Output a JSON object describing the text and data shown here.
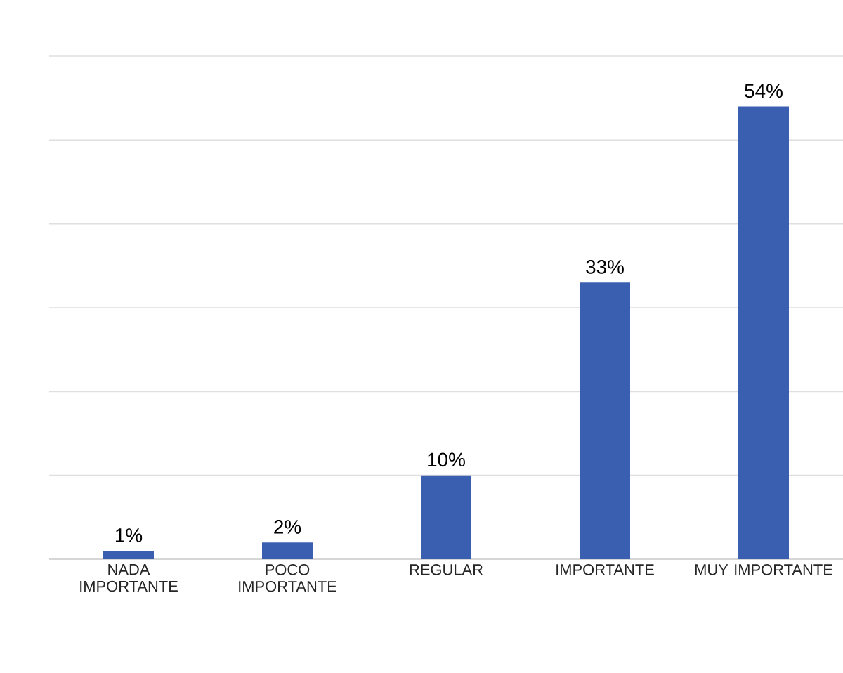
{
  "chart_data": {
    "type": "bar",
    "categories": [
      "NADA IMPORTANTE",
      "POCO IMPORTANTE",
      "REGULAR",
      "IMPORTANTE",
      "MUY IMPORTANTE"
    ],
    "values": [
      1,
      2,
      10,
      33,
      54
    ],
    "value_labels": [
      "1%",
      "2%",
      "10%",
      "33%",
      "54%"
    ],
    "color": "#3a5fb0",
    "ylim": [
      0,
      60
    ],
    "yticks": [
      {
        "value": 0,
        "label": null
      },
      {
        "value": 10,
        "label": null
      },
      {
        "value": 20,
        "label": null
      },
      {
        "value": 30,
        "label": null
      },
      {
        "value": 40,
        "label": null
      },
      {
        "value": 50,
        "label": null
      },
      {
        "value": 60,
        "label": null
      }
    ],
    "grid": "y",
    "tick_labels": "x"
  }
}
